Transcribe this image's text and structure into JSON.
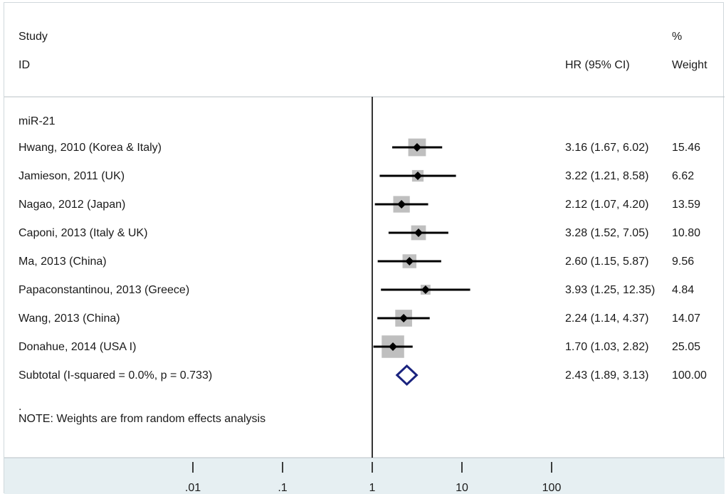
{
  "chart_data": {
    "type": "forest",
    "scale": "log",
    "header": {
      "study": "Study",
      "id": "ID",
      "estimate": "HR (95% CI)",
      "weight_pct": "%",
      "weight": "Weight"
    },
    "group_label": "miR-21",
    "studies": [
      {
        "label": "Hwang, 2010 (Korea & Italy)",
        "hr": 3.16,
        "lo": 1.67,
        "hi": 6.02,
        "weight": 15.46,
        "ci_text": "3.16 (1.67, 6.02)",
        "weight_text": "15.46"
      },
      {
        "label": "Jamieson, 2011 (UK)",
        "hr": 3.22,
        "lo": 1.21,
        "hi": 8.58,
        "weight": 6.62,
        "ci_text": "3.22 (1.21, 8.58)",
        "weight_text": "6.62"
      },
      {
        "label": "Nagao, 2012 (Japan)",
        "hr": 2.12,
        "lo": 1.07,
        "hi": 4.2,
        "weight": 13.59,
        "ci_text": "2.12 (1.07, 4.20)",
        "weight_text": "13.59"
      },
      {
        "label": "Caponi, 2013 (Italy & UK)",
        "hr": 3.28,
        "lo": 1.52,
        "hi": 7.05,
        "weight": 10.8,
        "ci_text": "3.28 (1.52, 7.05)",
        "weight_text": "10.80"
      },
      {
        "label": "Ma, 2013 (China)",
        "hr": 2.6,
        "lo": 1.15,
        "hi": 5.87,
        "weight": 9.56,
        "ci_text": "2.60 (1.15, 5.87)",
        "weight_text": "9.56"
      },
      {
        "label": "Papaconstantinou, 2013 (Greece)",
        "hr": 3.93,
        "lo": 1.25,
        "hi": 12.35,
        "weight": 4.84,
        "ci_text": "3.93 (1.25, 12.35)",
        "weight_text": "4.84"
      },
      {
        "label": "Wang, 2013 (China)",
        "hr": 2.24,
        "lo": 1.14,
        "hi": 4.37,
        "weight": 14.07,
        "ci_text": "2.24 (1.14, 4.37)",
        "weight_text": "14.07"
      },
      {
        "label": "Donahue, 2014 (USA I)",
        "hr": 1.7,
        "lo": 1.03,
        "hi": 2.82,
        "weight": 25.05,
        "ci_text": "1.70 (1.03, 2.82)",
        "weight_text": "25.05"
      }
    ],
    "subtotal": {
      "label": "Subtotal  (I-squared = 0.0%, p = 0.733)",
      "hr": 2.43,
      "lo": 1.89,
      "hi": 3.13,
      "weight": 100.0,
      "ci_text": "2.43 (1.89, 3.13)",
      "weight_text": "100.00"
    },
    "dot": ".",
    "note": "NOTE: Weights are from random effects analysis",
    "x_ticks": [
      {
        "value": 0.01,
        "label": ".01"
      },
      {
        "value": 0.1,
        "label": ".1"
      },
      {
        "value": 1,
        "label": "1"
      },
      {
        "value": 10,
        "label": "10"
      },
      {
        "value": 100,
        "label": "100"
      }
    ],
    "reference_line": 1
  },
  "colors": {
    "background": "#ffffff",
    "axis_band": "#e6eff2",
    "weight_box": "#bfbfbf",
    "marker": "#000000",
    "diamond": "#1a237e",
    "separator": "#b8c2c6"
  }
}
